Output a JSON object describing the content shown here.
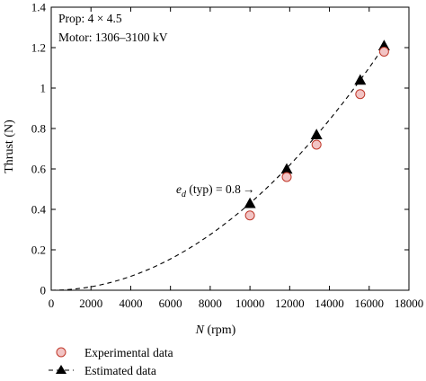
{
  "chart_data": {
    "type": "scatter",
    "title": "",
    "xlabel_var": "N",
    "xlabel_unit": " (rpm)",
    "ylabel": "Thrust (N)",
    "xlim": [
      0,
      18000
    ],
    "ylim": [
      0,
      1.4
    ],
    "xticks": [
      0,
      2000,
      4000,
      6000,
      8000,
      10000,
      12000,
      14000,
      16000,
      18000
    ],
    "xtick_labels": [
      "0",
      "2000",
      "4000",
      "6000",
      "8000",
      "10000",
      "12000",
      "14000",
      "16000",
      "18000"
    ],
    "yticks": [
      0,
      0.2,
      0.4,
      0.6,
      0.8,
      1.0,
      1.2,
      1.4
    ],
    "ytick_labels": [
      "0",
      "0.2",
      "0.4",
      "0.6",
      "0.8",
      "1",
      "1.2",
      "1.4"
    ],
    "grid": false,
    "legend_position": "below",
    "series": [
      {
        "name": "Experimental data",
        "marker": "circle",
        "color": "#f2c4c4",
        "edge_color": "#c0392b",
        "x": [
          10000,
          11850,
          13350,
          15550,
          16750
        ],
        "y": [
          0.37,
          0.56,
          0.72,
          0.97,
          1.18
        ]
      },
      {
        "name": "Estimated data",
        "marker": "triangle",
        "line": "dashed",
        "color": "#000000",
        "x": [
          10000,
          11850,
          13350,
          15550,
          16750
        ],
        "y": [
          0.43,
          0.6,
          0.77,
          1.04,
          1.21
        ],
        "curve_coefficient": 4.3e-09
      }
    ],
    "annotations": {
      "prop": "Prop: 4 × 4.5",
      "motor": "Motor: 1306–3100 kV",
      "efficiency_symbol": "e",
      "efficiency_subscript": "d",
      "efficiency_text": " (typ) = 0.8",
      "efficiency_arrow": "→"
    }
  }
}
